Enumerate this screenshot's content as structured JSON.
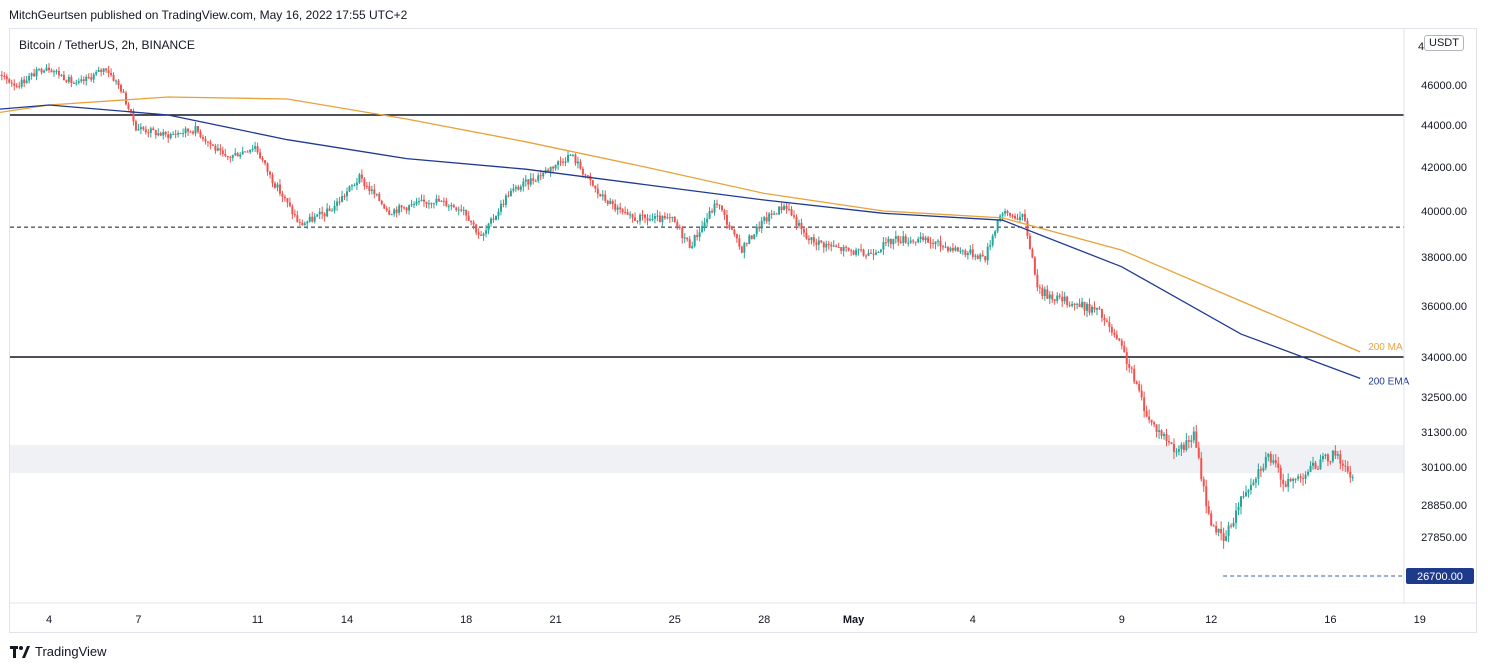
{
  "header": {
    "publish_line": "MitchGeurtsen published on TradingView.com, May 16, 2022 17:55 UTC+2"
  },
  "chart_header": {
    "symbol_title": "Bitcoin / TetherUS, 2h, BINANCE",
    "currency": "USDT"
  },
  "footer": {
    "brand": "TradingView"
  },
  "colors": {
    "up": "#26a69a",
    "down": "#ef5350",
    "ma": "#e9a23b",
    "ema": "#1f3a93",
    "price_tag": "#1e3a8a",
    "zone": "#f0f1f4"
  },
  "chart_data": {
    "type": "candlestick",
    "title": "Bitcoin / TetherUS, 2h, BINANCE",
    "y_axis": {
      "side": "right",
      "ticks": [
        46000,
        44000,
        42000,
        40000,
        38000,
        36000,
        34000,
        32500,
        31300,
        30100,
        28850,
        27850
      ],
      "tick_labels": [
        "46000.00",
        "44000.00",
        "42000.00",
        "40000.00",
        "38000.00",
        "36000.00",
        "34000.00",
        "32500.00",
        "31300.00",
        "30100.00",
        "28850.00",
        "27850.00"
      ],
      "top_partial_label": "4"
    },
    "x_axis": {
      "labels": [
        "4",
        "7",
        "11",
        "14",
        "18",
        "21",
        "25",
        "28",
        "May",
        "4",
        "9",
        "12",
        "16",
        "19"
      ],
      "label_days": [
        4,
        7,
        11,
        14,
        18,
        21,
        25,
        28,
        31,
        35,
        40,
        43,
        47,
        50
      ],
      "day_numbering": "April 1 = day 1; May 1 = day 31"
    },
    "price_path": [
      [
        1,
        46.4
      ],
      [
        2,
        46.8
      ],
      [
        3,
        46.0
      ],
      [
        4,
        47.0
      ],
      [
        5,
        46.0
      ],
      [
        6,
        46.9
      ],
      [
        6.5,
        45.8
      ],
      [
        7,
        43.9
      ],
      [
        8,
        43.5
      ],
      [
        9,
        43.8
      ],
      [
        10,
        42.4
      ],
      [
        11,
        43.0
      ],
      [
        11.5,
        41.6
      ],
      [
        12.5,
        39.4
      ],
      [
        13.5,
        40.0
      ],
      [
        14.5,
        41.5
      ],
      [
        15.5,
        40.0
      ],
      [
        17,
        40.5
      ],
      [
        18,
        40.1
      ],
      [
        18.6,
        38.8
      ],
      [
        19.5,
        40.8
      ],
      [
        20.5,
        41.6
      ],
      [
        21.6,
        42.6
      ],
      [
        22.5,
        40.8
      ],
      [
        23.5,
        39.7
      ],
      [
        25,
        39.6
      ],
      [
        25.6,
        38.5
      ],
      [
        26.5,
        40.4
      ],
      [
        27.3,
        38.3
      ],
      [
        28,
        39.5
      ],
      [
        28.8,
        40.3
      ],
      [
        29.5,
        38.8
      ],
      [
        30.5,
        38.4
      ],
      [
        31.5,
        38.1
      ],
      [
        32.5,
        38.8
      ],
      [
        33.5,
        38.7
      ],
      [
        35.5,
        38.0
      ],
      [
        36,
        39.9
      ],
      [
        36.8,
        39.7
      ],
      [
        37.3,
        36.6
      ],
      [
        38.2,
        36.2
      ],
      [
        39.3,
        35.8
      ],
      [
        40.1,
        34.3
      ],
      [
        41,
        31.7
      ],
      [
        42,
        30.6
      ],
      [
        42.5,
        31.2
      ],
      [
        43,
        28.5
      ],
      [
        43.5,
        27.7
      ],
      [
        44.2,
        29.3
      ],
      [
        45,
        30.5
      ],
      [
        45.6,
        29.5
      ],
      [
        46.5,
        30.1
      ],
      [
        47.3,
        30.6
      ],
      [
        47.8,
        29.6
      ]
    ],
    "indicators": [
      {
        "name": "200 MA",
        "type": "line",
        "points": [
          [
            0,
            44.1
          ],
          [
            4,
            45.0
          ],
          [
            8,
            45.4
          ],
          [
            12,
            45.3
          ],
          [
            16,
            44.3
          ],
          [
            20,
            43.2
          ],
          [
            24,
            42.0
          ],
          [
            28,
            40.8
          ],
          [
            32,
            40.0
          ],
          [
            36,
            39.7
          ],
          [
            40,
            38.3
          ],
          [
            44,
            36.2
          ],
          [
            48,
            34.2
          ]
        ]
      },
      {
        "name": "200 EMA",
        "type": "line",
        "points": [
          [
            0,
            44.5
          ],
          [
            4,
            45.0
          ],
          [
            8,
            44.5
          ],
          [
            12,
            43.3
          ],
          [
            16,
            42.4
          ],
          [
            20,
            41.9
          ],
          [
            24,
            41.2
          ],
          [
            28,
            40.5
          ],
          [
            32,
            39.9
          ],
          [
            36,
            39.6
          ],
          [
            40,
            37.6
          ],
          [
            44,
            34.9
          ],
          [
            48,
            33.2
          ]
        ]
      }
    ],
    "levels": [
      {
        "price": 44500,
        "style": "solid"
      },
      {
        "price": 39300,
        "style": "dashed"
      },
      {
        "price": 34000,
        "style": "solid"
      },
      {
        "price": 26700,
        "style": "dashed",
        "from_day": 43.4
      }
    ],
    "zone": {
      "from_price": 29900,
      "to_price": 30850
    },
    "last_price_label": "26700.00",
    "last_price": 26700
  }
}
